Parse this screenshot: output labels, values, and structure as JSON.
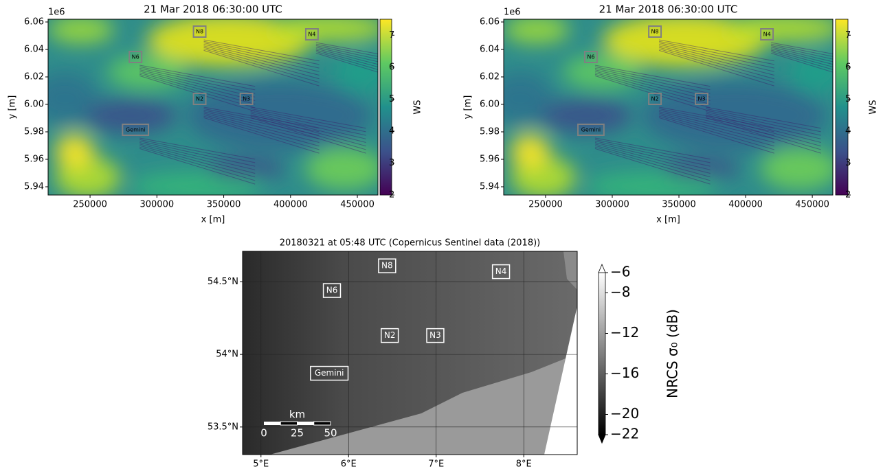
{
  "chart_data": [
    {
      "type": "heatmap",
      "title": "21 Mar 2018 06:30:00 UTC",
      "xlabel": "x [m]",
      "ylabel": "y [m]",
      "offset_label": "1e6",
      "xlim": [
        218600,
        465400
      ],
      "xticks": [
        250000,
        300000,
        350000,
        400000,
        450000
      ],
      "ylim": [
        5934000,
        6062000
      ],
      "yticks": [
        {
          "value": 5940000,
          "label": "5.94"
        },
        {
          "value": 5960000,
          "label": "5.96"
        },
        {
          "value": 5980000,
          "label": "5.98"
        },
        {
          "value": 6000000,
          "label": "6.00"
        },
        {
          "value": 6020000,
          "label": "6.02"
        },
        {
          "value": 6040000,
          "label": "6.04"
        },
        {
          "value": 6060000,
          "label": "6.06"
        }
      ],
      "colormap": "viridis",
      "colorbar": {
        "label": "WS",
        "lim": [
          2,
          7.5
        ],
        "ticks": [
          2,
          3,
          4,
          5,
          6,
          7
        ]
      },
      "annotations": [
        {
          "text": "N8",
          "x": 332000,
          "y": 6053000
        },
        {
          "text": "N4",
          "x": 416000,
          "y": 6051000
        },
        {
          "text": "N6",
          "x": 284000,
          "y": 6034500
        },
        {
          "text": "N2",
          "x": 332000,
          "y": 6004000
        },
        {
          "text": "N3",
          "x": 367000,
          "y": 6004000
        },
        {
          "text": "Gemini",
          "x": 284000,
          "y": 5981500
        }
      ]
    },
    {
      "type": "heatmap",
      "title": "21 Mar 2018 06:30:00 UTC",
      "xlabel": "x [m]",
      "ylabel": "y [m]",
      "offset_label": "1e6",
      "xlim": [
        218600,
        465400
      ],
      "xticks": [
        250000,
        300000,
        350000,
        400000,
        450000
      ],
      "ylim": [
        5934000,
        6062000
      ],
      "yticks": [
        {
          "value": 5940000,
          "label": "5.94"
        },
        {
          "value": 5960000,
          "label": "5.96"
        },
        {
          "value": 5980000,
          "label": "5.98"
        },
        {
          "value": 6000000,
          "label": "6.00"
        },
        {
          "value": 6020000,
          "label": "6.02"
        },
        {
          "value": 6040000,
          "label": "6.04"
        },
        {
          "value": 6060000,
          "label": "6.06"
        }
      ],
      "colormap": "viridis",
      "colorbar": {
        "label": "WS",
        "lim": [
          2,
          7.5
        ],
        "ticks": [
          2,
          3,
          4,
          5,
          6,
          7
        ]
      },
      "annotations": [
        {
          "text": "N8",
          "x": 332000,
          "y": 6053000
        },
        {
          "text": "N4",
          "x": 416000,
          "y": 6051000
        },
        {
          "text": "N6",
          "x": 284000,
          "y": 6034500
        },
        {
          "text": "N2",
          "x": 332000,
          "y": 6004000
        },
        {
          "text": "N3",
          "x": 367000,
          "y": 6004000
        },
        {
          "text": "Gemini",
          "x": 284000,
          "y": 5981500
        }
      ]
    },
    {
      "type": "image",
      "title": "20180321 at 05:48 UTC (Copernicus Sentinel data (2018))",
      "xlim": [
        4.79,
        8.61
      ],
      "xticks": [
        {
          "value": 5,
          "label": "5°E"
        },
        {
          "value": 6,
          "label": "6°E"
        },
        {
          "value": 7,
          "label": "7°E"
        },
        {
          "value": 8,
          "label": "8°E"
        }
      ],
      "ylim": [
        53.31,
        54.71
      ],
      "yticks": [
        {
          "value": 53.5,
          "label": "53.5°N"
        },
        {
          "value": 54,
          "label": "54°N"
        },
        {
          "value": 54.5,
          "label": "54.5°N"
        }
      ],
      "colormap": "gray",
      "colorbar": {
        "label": "NRCS σ₀ (dB)",
        "lim": [
          -22,
          -6
        ],
        "extend": "both",
        "ticks": [
          {
            "value": -6,
            "label": "−6"
          },
          {
            "value": -8,
            "label": "−8"
          },
          {
            "value": -12,
            "label": "−12"
          },
          {
            "value": -16,
            "label": "−16"
          },
          {
            "value": -20,
            "label": "−20"
          },
          {
            "value": -22,
            "label": "−22"
          }
        ]
      },
      "scalebar": {
        "label": "km",
        "ticks": [
          0,
          25,
          50
        ]
      },
      "annotations": [
        {
          "text": "N8",
          "x": 6.44,
          "y": 54.61
        },
        {
          "text": "N6",
          "x": 5.81,
          "y": 54.44
        },
        {
          "text": "N4",
          "x": 7.74,
          "y": 54.57
        },
        {
          "text": "N2",
          "x": 6.47,
          "y": 54.13
        },
        {
          "text": "N3",
          "x": 6.99,
          "y": 54.13
        },
        {
          "text": "Gemini",
          "x": 5.78,
          "y": 53.87
        }
      ]
    }
  ]
}
